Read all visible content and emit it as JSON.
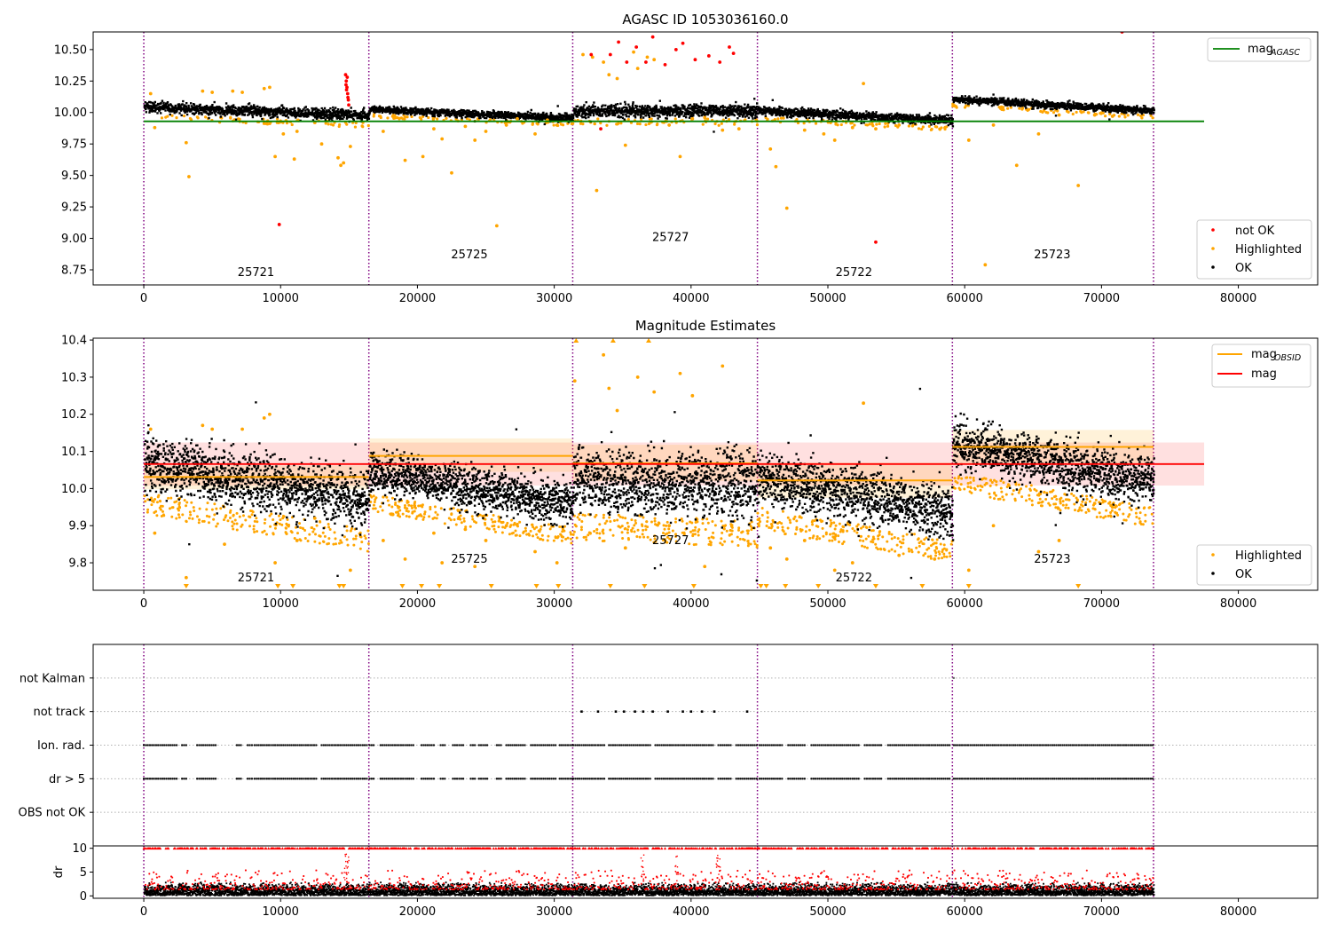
{
  "figure": {
    "title": "AGASC ID 1053036160.0",
    "subtitle": "Magnitude Estimates"
  },
  "colors": {
    "ok": "#000000",
    "highlighted": "#ffa500",
    "not_ok": "#ff0000",
    "mag_agasc": "#008000",
    "mag": "#ff0000",
    "mag_obsid": "#ffa500",
    "obsid_divider": "#800080",
    "flag_grid": "#b0b0b0"
  },
  "chart_data": [
    {
      "type": "scatter",
      "title": "AGASC ID 1053036160.0",
      "xlabel": "",
      "ylabel": "",
      "xlim": [
        -3700,
        85800
      ],
      "ylim": [
        8.63,
        10.64
      ],
      "xticks": [
        0,
        10000,
        20000,
        30000,
        40000,
        50000,
        60000,
        70000,
        80000
      ],
      "yticks": [
        8.75,
        9.0,
        9.25,
        9.5,
        9.75,
        10.0,
        10.25,
        10.5
      ],
      "ytick_labels": [
        "8.75",
        "9.00",
        "9.25",
        "9.50",
        "9.75",
        "10.00",
        "10.25",
        "10.50"
      ],
      "obsid_boundaries": [
        0,
        16450,
        31350,
        44850,
        59100,
        73800
      ],
      "obsids": [
        {
          "label": "25721",
          "x": 8200,
          "y": 8.7
        },
        {
          "label": "25725",
          "x": 23800,
          "y": 8.84
        },
        {
          "label": "25727",
          "x": 38500,
          "y": 8.98
        },
        {
          "label": "25722",
          "x": 51900,
          "y": 8.7
        },
        {
          "label": "25723",
          "x": 66400,
          "y": 8.84
        }
      ],
      "segments": [
        {
          "x0": 0,
          "x1": 16450,
          "start": 10.05,
          "end": 9.98,
          "spread": 0.03
        },
        {
          "x0": 16450,
          "x1": 31350,
          "start": 10.03,
          "end": 9.96,
          "spread": 0.02
        },
        {
          "x0": 31350,
          "x1": 44850,
          "start": 10.02,
          "end": 10.02,
          "spread": 0.035
        },
        {
          "x0": 44850,
          "x1": 59100,
          "start": 10.02,
          "end": 9.94,
          "spread": 0.025
        },
        {
          "x0": 59100,
          "x1": 73800,
          "start": 10.11,
          "end": 10.02,
          "spread": 0.02
        }
      ],
      "reference_lines": [
        {
          "name": "mag_AGASC",
          "y": 9.93,
          "x0": 0,
          "x1": 77500
        }
      ],
      "legend_lines": [
        {
          "label": "mag",
          "sub": "AGASC",
          "color": "#008000"
        }
      ],
      "legend_points": [
        {
          "label": "not OK",
          "color": "#ff0000"
        },
        {
          "label": "Highlighted",
          "color": "#ffa500"
        },
        {
          "label": "OK",
          "color": "#000000"
        }
      ],
      "outliers_highlighted": [
        [
          500,
          10.15
        ],
        [
          800,
          9.88
        ],
        [
          3100,
          9.76
        ],
        [
          3300,
          9.49
        ],
        [
          4300,
          10.17
        ],
        [
          5000,
          10.16
        ],
        [
          6500,
          10.17
        ],
        [
          7200,
          10.16
        ],
        [
          8800,
          10.19
        ],
        [
          9200,
          10.2
        ],
        [
          9600,
          9.65
        ],
        [
          10200,
          9.83
        ],
        [
          11000,
          9.63
        ],
        [
          11200,
          9.85
        ],
        [
          12500,
          9.92
        ],
        [
          13000,
          9.75
        ],
        [
          14200,
          9.64
        ],
        [
          14400,
          9.58
        ],
        [
          14600,
          9.6
        ],
        [
          15100,
          9.73
        ],
        [
          17500,
          9.85
        ],
        [
          18200,
          9.97
        ],
        [
          19100,
          9.62
        ],
        [
          20400,
          9.65
        ],
        [
          21200,
          9.87
        ],
        [
          21800,
          9.79
        ],
        [
          22500,
          9.52
        ],
        [
          23500,
          9.89
        ],
        [
          24200,
          9.78
        ],
        [
          25000,
          9.85
        ],
        [
          25800,
          9.1
        ],
        [
          26500,
          9.9
        ],
        [
          27300,
          9.95
        ],
        [
          28600,
          9.83
        ],
        [
          29500,
          9.94
        ],
        [
          30200,
          9.9
        ],
        [
          32100,
          10.46
        ],
        [
          32800,
          10.44
        ],
        [
          33100,
          9.38
        ],
        [
          33600,
          10.4
        ],
        [
          34000,
          10.3
        ],
        [
          34600,
          10.27
        ],
        [
          35200,
          9.74
        ],
        [
          35800,
          10.48
        ],
        [
          36100,
          10.35
        ],
        [
          36800,
          10.44
        ],
        [
          37300,
          10.42
        ],
        [
          38400,
          9.9
        ],
        [
          39200,
          9.65
        ],
        [
          40100,
          9.95
        ],
        [
          41000,
          9.96
        ],
        [
          42300,
          9.86
        ],
        [
          43500,
          9.87
        ],
        [
          45800,
          9.71
        ],
        [
          46200,
          9.57
        ],
        [
          47000,
          9.24
        ],
        [
          48300,
          9.86
        ],
        [
          49700,
          9.83
        ],
        [
          50500,
          9.78
        ],
        [
          51800,
          9.88
        ],
        [
          52600,
          10.23
        ],
        [
          53500,
          9.87
        ],
        [
          55200,
          9.9
        ],
        [
          60300,
          9.78
        ],
        [
          61500,
          8.79
        ],
        [
          62100,
          9.9
        ],
        [
          63800,
          9.58
        ],
        [
          65400,
          9.83
        ],
        [
          66900,
          9.98
        ],
        [
          68300,
          9.42
        ],
        [
          69500,
          9.98
        ],
        [
          70800,
          9.97
        ]
      ],
      "outliers_not_ok": [
        [
          9900,
          9.11
        ],
        [
          14750,
          10.3
        ],
        [
          14800,
          10.25
        ],
        [
          14850,
          10.2
        ],
        [
          14900,
          10.15
        ],
        [
          14950,
          10.1
        ],
        [
          14780,
          10.22
        ],
        [
          14820,
          10.18
        ],
        [
          14870,
          10.28
        ],
        [
          14920,
          10.12
        ],
        [
          14980,
          10.06
        ],
        [
          32700,
          10.46
        ],
        [
          33400,
          9.87
        ],
        [
          34100,
          10.46
        ],
        [
          34700,
          10.56
        ],
        [
          35300,
          10.4
        ],
        [
          36000,
          10.52
        ],
        [
          36700,
          10.4
        ],
        [
          37200,
          10.6
        ],
        [
          38100,
          10.38
        ],
        [
          38900,
          10.5
        ],
        [
          39400,
          10.55
        ],
        [
          40300,
          10.42
        ],
        [
          41300,
          10.45
        ],
        [
          42100,
          10.4
        ],
        [
          42800,
          10.52
        ],
        [
          43100,
          10.47
        ],
        [
          53500,
          8.97
        ],
        [
          71500,
          10.64
        ]
      ]
    },
    {
      "type": "scatter",
      "title": "Magnitude Estimates",
      "xlabel": "",
      "ylabel": "",
      "xlim": [
        -3700,
        85800
      ],
      "ylim": [
        9.726,
        10.405
      ],
      "xticks": [
        0,
        10000,
        20000,
        30000,
        40000,
        50000,
        60000,
        70000,
        80000
      ],
      "yticks": [
        9.8,
        9.9,
        10.0,
        10.1,
        10.2,
        10.3,
        10.4
      ],
      "ytick_labels": [
        "9.8",
        "9.9",
        "10.0",
        "10.1",
        "10.2",
        "10.3",
        "10.4"
      ],
      "obsid_boundaries": [
        0,
        16450,
        31350,
        44850,
        59100,
        73800
      ],
      "obsids": [
        {
          "label": "25721",
          "x": 8200,
          "y": 9.75
        },
        {
          "label": "25725",
          "x": 23800,
          "y": 9.8
        },
        {
          "label": "25727",
          "x": 38500,
          "y": 9.85
        },
        {
          "label": "25722",
          "x": 51900,
          "y": 9.75
        },
        {
          "label": "25723",
          "x": 66400,
          "y": 9.8
        }
      ],
      "mag": {
        "value": 10.066,
        "band": [
          10.008,
          10.124
        ],
        "x0": 0,
        "x1": 77500
      },
      "mag_obsid": [
        {
          "x0": 0,
          "x1": 16450,
          "value": 10.031,
          "band": [
            9.998,
            10.062
          ]
        },
        {
          "x0": 16450,
          "x1": 31350,
          "value": 10.088,
          "band": [
            10.045,
            10.135
          ]
        },
        {
          "x0": 31350,
          "x1": 44850,
          "value": 10.068,
          "band": [
            10.02,
            10.118
          ]
        },
        {
          "x0": 44850,
          "x1": 59100,
          "value": 10.022,
          "band": [
            9.975,
            10.07
          ]
        },
        {
          "x0": 59100,
          "x1": 73800,
          "value": 10.112,
          "band": [
            10.068,
            10.158
          ]
        }
      ],
      "segments": [
        {
          "x0": 0,
          "x1": 16450,
          "start": 10.07,
          "end": 9.97,
          "spread": 0.05
        },
        {
          "x0": 16450,
          "x1": 31350,
          "start": 10.05,
          "end": 9.96,
          "spread": 0.04
        },
        {
          "x0": 31350,
          "x1": 44850,
          "start": 10.03,
          "end": 10.01,
          "spread": 0.06
        },
        {
          "x0": 44850,
          "x1": 59100,
          "start": 10.03,
          "end": 9.94,
          "spread": 0.05
        },
        {
          "x0": 59100,
          "x1": 73800,
          "start": 10.12,
          "end": 10.02,
          "spread": 0.045
        }
      ],
      "legend_lines": [
        {
          "label": "mag",
          "sub": "OBSID",
          "color": "#ffa500"
        },
        {
          "label": "mag",
          "sub": "",
          "color": "#ff0000"
        }
      ],
      "legend_points": [
        {
          "label": "Highlighted",
          "color": "#ffa500"
        },
        {
          "label": "OK",
          "color": "#000000"
        }
      ],
      "outliers_highlighted": [
        [
          500,
          10.16
        ],
        [
          800,
          9.88
        ],
        [
          3100,
          9.76
        ],
        [
          4300,
          10.17
        ],
        [
          5000,
          10.16
        ],
        [
          5900,
          9.85
        ],
        [
          7200,
          10.16
        ],
        [
          8800,
          10.19
        ],
        [
          9200,
          10.2
        ],
        [
          9600,
          9.8
        ],
        [
          11200,
          9.86
        ],
        [
          12500,
          9.92
        ],
        [
          15100,
          9.78
        ],
        [
          17500,
          9.86
        ],
        [
          18200,
          9.93
        ],
        [
          19100,
          9.81
        ],
        [
          21200,
          9.88
        ],
        [
          21800,
          9.8
        ],
        [
          23500,
          9.89
        ],
        [
          24200,
          9.79
        ],
        [
          25000,
          9.86
        ],
        [
          26500,
          9.9
        ],
        [
          28600,
          9.83
        ],
        [
          30200,
          9.8
        ],
        [
          31500,
          10.29
        ],
        [
          33600,
          10.36
        ],
        [
          34000,
          10.27
        ],
        [
          34600,
          10.21
        ],
        [
          35200,
          9.84
        ],
        [
          36100,
          10.3
        ],
        [
          37300,
          10.26
        ],
        [
          38400,
          9.9
        ],
        [
          39200,
          10.31
        ],
        [
          40100,
          10.25
        ],
        [
          41000,
          9.79
        ],
        [
          42300,
          10.33
        ],
        [
          45800,
          9.84
        ],
        [
          47000,
          9.81
        ],
        [
          48300,
          9.86
        ],
        [
          50500,
          9.78
        ],
        [
          51800,
          9.8
        ],
        [
          52600,
          10.23
        ],
        [
          55200,
          9.82
        ],
        [
          57800,
          9.81
        ],
        [
          60300,
          9.78
        ],
        [
          62100,
          9.9
        ],
        [
          65400,
          9.83
        ],
        [
          66900,
          9.86
        ],
        [
          69500,
          9.96
        ],
        [
          70800,
          9.95
        ]
      ],
      "floor_markers": [
        3100,
        9800,
        10900,
        14300,
        14600,
        18900,
        20300,
        21600,
        25400,
        28700,
        30300,
        34100,
        36600,
        40200,
        45100,
        45500,
        46900,
        49300,
        53500,
        56900,
        60300,
        68300
      ],
      "ceiling_markers": [
        31600,
        34300,
        36900
      ]
    },
    {
      "type": "scatter",
      "title": "",
      "xlabel": "",
      "ylabel": "",
      "xlim": [
        -3700,
        85800
      ],
      "categories": [
        "OBS not OK",
        "dr > 5",
        "Ion. rad.",
        "not track",
        "not Kalman"
      ],
      "obsid_boundaries": [
        0,
        16450,
        31350,
        44850,
        59100,
        73800
      ],
      "flag_events": {
        "dr > 5": [
          [
            0,
            2400
          ],
          [
            2800,
            3100
          ],
          [
            3900,
            5300
          ],
          [
            6800,
            7100
          ],
          [
            7600,
            7900
          ],
          [
            8100,
            12600
          ],
          [
            13000,
            16400
          ],
          [
            16500,
            16800
          ],
          [
            17300,
            19800
          ],
          [
            20300,
            21200
          ],
          [
            21700,
            22100
          ],
          [
            22600,
            23400
          ],
          [
            23900,
            24200
          ],
          [
            24500,
            25100
          ],
          [
            25800,
            26100
          ],
          [
            26500,
            27900
          ],
          [
            28300,
            30100
          ],
          [
            30400,
            31300
          ],
          [
            31400,
            33700
          ],
          [
            34000,
            37100
          ],
          [
            37400,
            41600
          ],
          [
            42000,
            43000
          ],
          [
            43300,
            44800
          ],
          [
            45000,
            46700
          ],
          [
            47100,
            48400
          ],
          [
            48800,
            52300
          ],
          [
            52700,
            54000
          ],
          [
            54400,
            59000
          ],
          [
            59200,
            73800
          ]
        ],
        "Ion. rad.": [
          [
            0,
            2400
          ],
          [
            2800,
            3100
          ],
          [
            3900,
            5300
          ],
          [
            6800,
            7100
          ],
          [
            7600,
            7900
          ],
          [
            8100,
            12600
          ],
          [
            13000,
            16400
          ],
          [
            16500,
            16800
          ],
          [
            17300,
            19800
          ],
          [
            20300,
            21200
          ],
          [
            21700,
            22100
          ],
          [
            22600,
            23400
          ],
          [
            23900,
            24200
          ],
          [
            24500,
            25100
          ],
          [
            25800,
            26100
          ],
          [
            26500,
            27900
          ],
          [
            28300,
            30100
          ],
          [
            30400,
            31300
          ],
          [
            31400,
            33700
          ],
          [
            34000,
            37100
          ],
          [
            37400,
            41600
          ],
          [
            42000,
            43000
          ],
          [
            43300,
            44800
          ],
          [
            45000,
            46700
          ],
          [
            47100,
            48400
          ],
          [
            48800,
            52300
          ],
          [
            52700,
            54000
          ],
          [
            54400,
            59000
          ],
          [
            59200,
            73800
          ]
        ],
        "not track": [
          32000,
          33200,
          34500,
          35100,
          35900,
          36500,
          37200,
          38300,
          39400,
          40000,
          40800,
          41700,
          44100
        ],
        "not Kalman": [
          59200
        ]
      },
      "grid": true
    },
    {
      "type": "scatter",
      "title": "",
      "xlabel": "",
      "ylabel": "dr",
      "xlim": [
        -3700,
        85800
      ],
      "ylim": [
        -0.5,
        10.5
      ],
      "xticks": [
        0,
        10000,
        20000,
        30000,
        40000,
        50000,
        60000,
        70000,
        80000
      ],
      "yticks": [
        0,
        5,
        10
      ],
      "ytick_labels": [
        "0",
        "5",
        "10"
      ],
      "obsid_boundaries": [
        0,
        16450,
        31350,
        44850,
        59100,
        73800
      ],
      "base_level": [
        0.2,
        3.0
      ],
      "red_ceiling": 10
    }
  ]
}
